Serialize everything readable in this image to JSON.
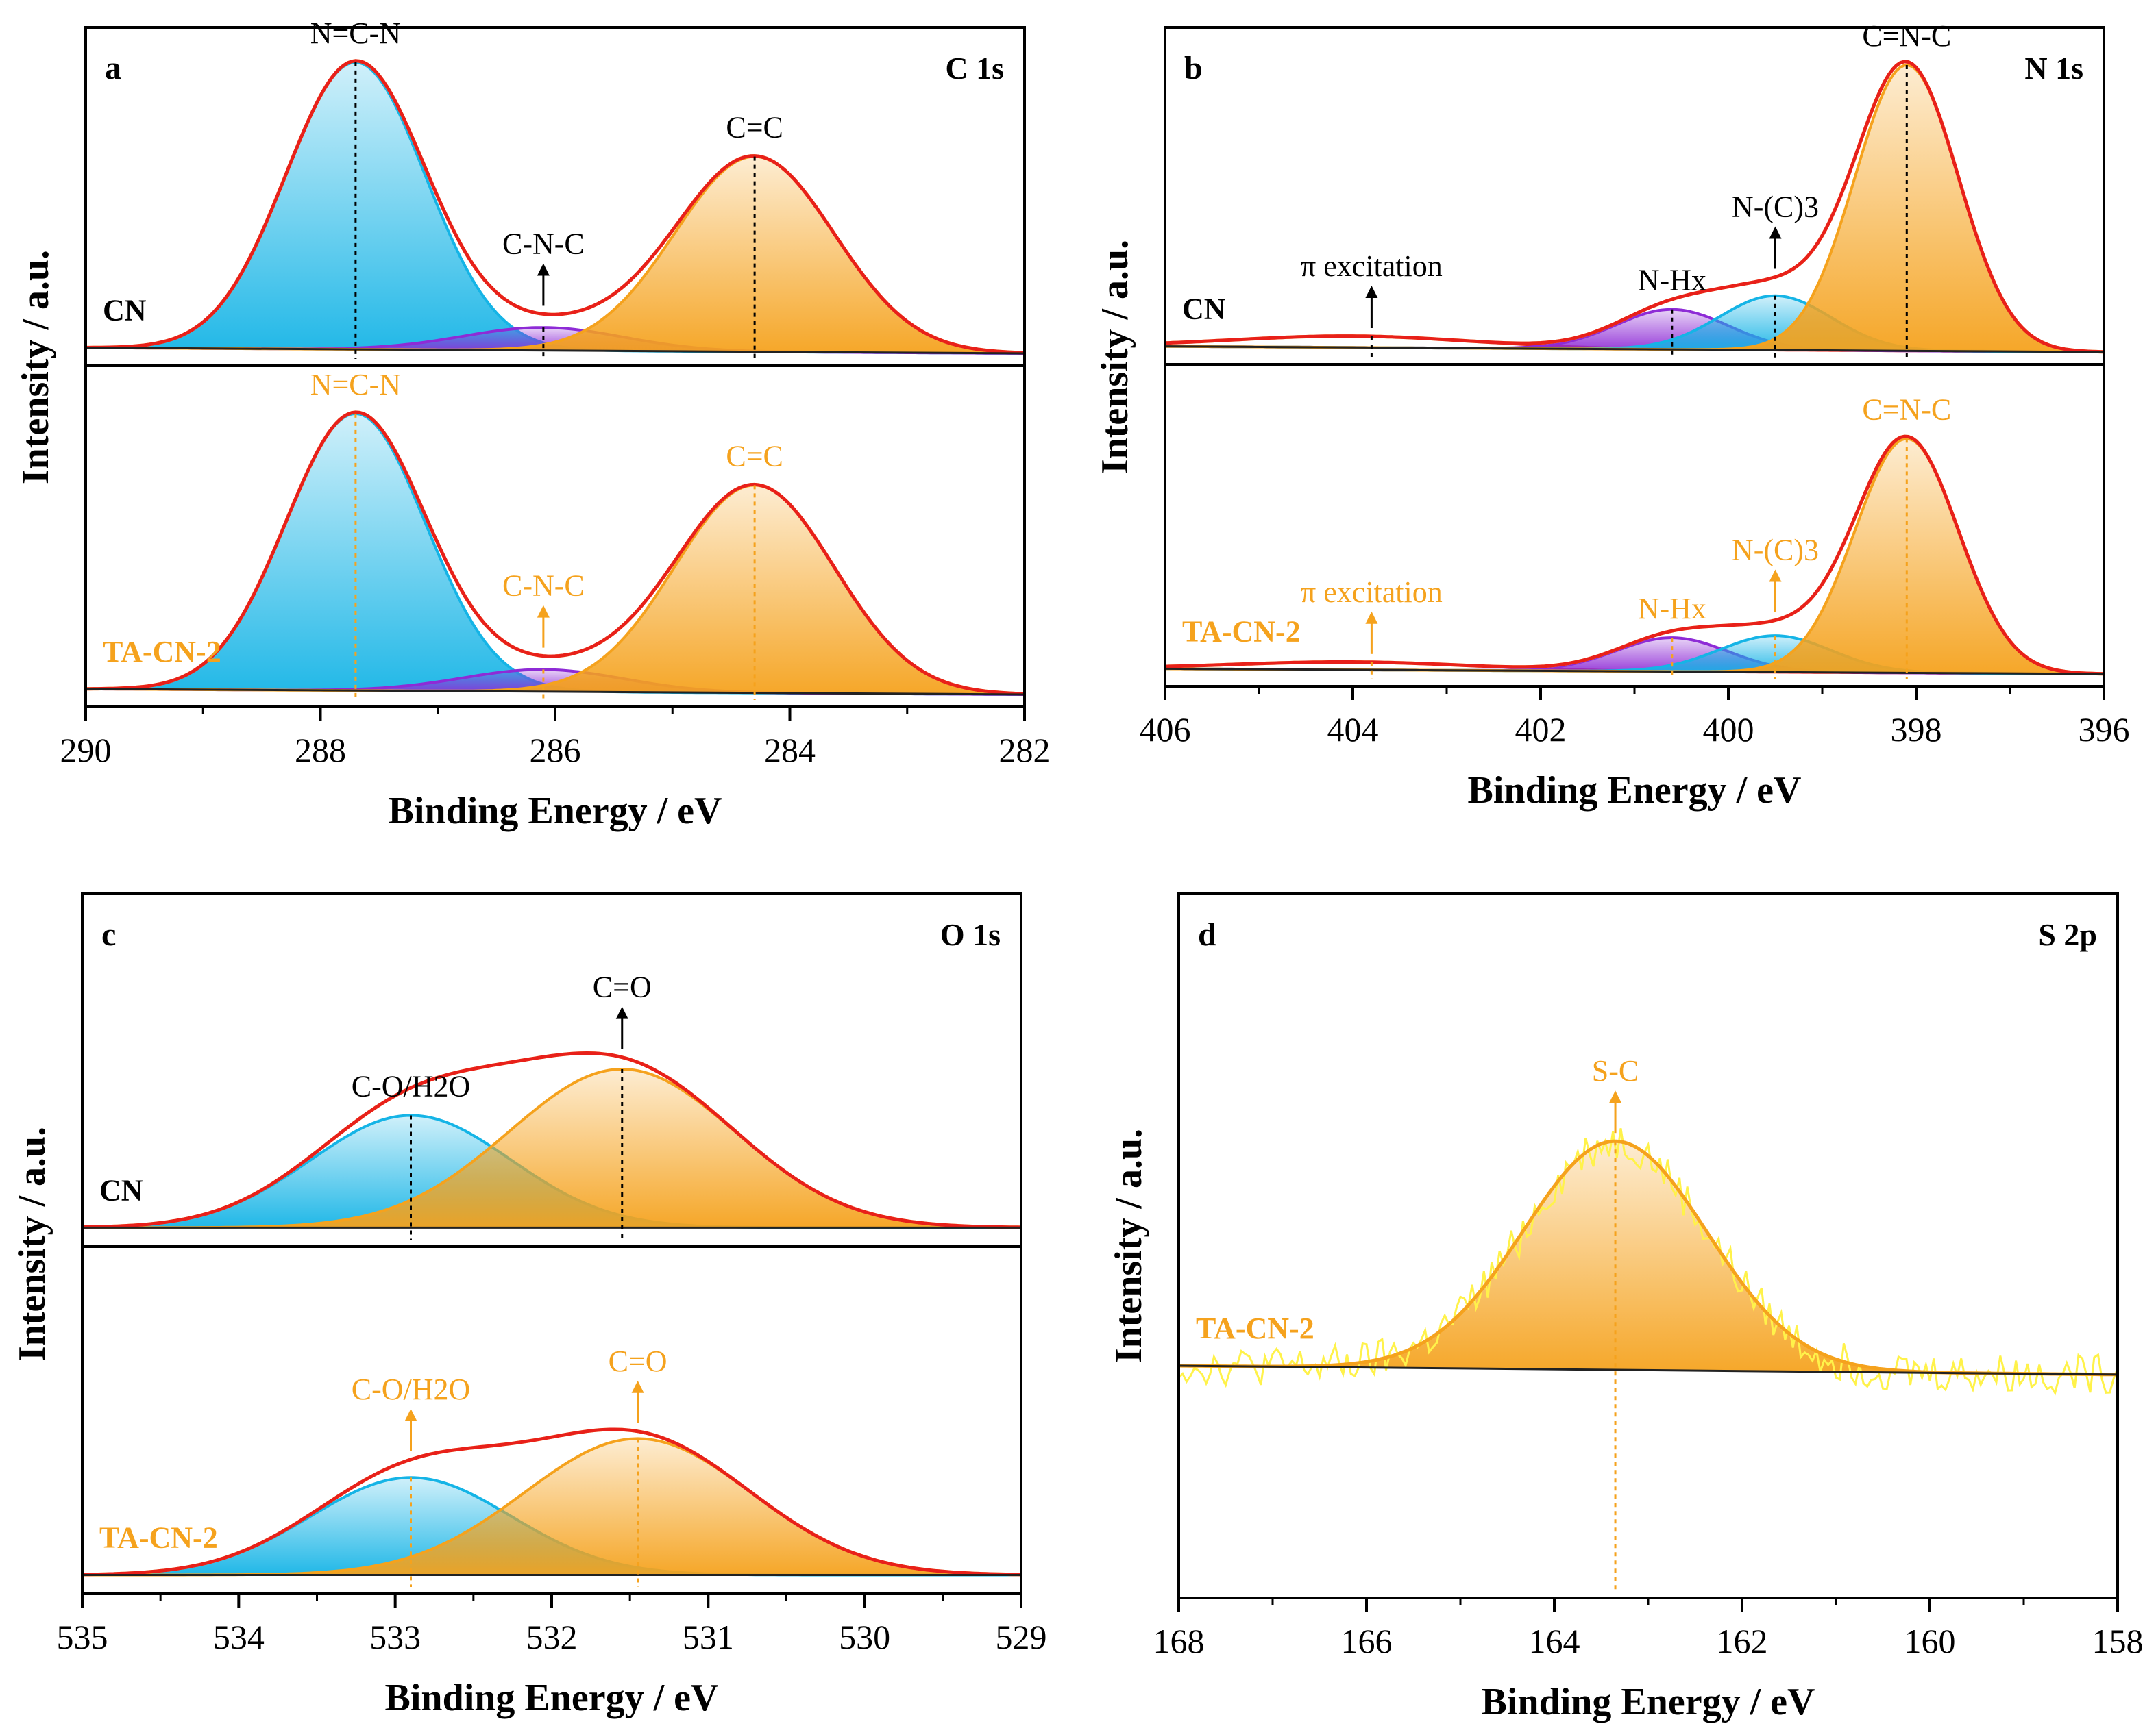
{
  "figure": {
    "colors": {
      "envelope": "#e8201a",
      "blue": "#15b4e6",
      "purple": "#8e2bd6",
      "orange": "#f5a21d",
      "raw": "#fff24a",
      "black": "#000000"
    }
  },
  "chart_data": [
    {
      "type": "line",
      "panel": "a",
      "title": "C 1s",
      "xlabel": "Binding Energy / eV",
      "ylabel": "Intensity / a.u.",
      "xlim": [
        290,
        282
      ],
      "xticks": [
        "290",
        "288",
        "286",
        "284",
        "282"
      ],
      "subpanels": [
        {
          "sample": "CN",
          "sample_color": "#000000",
          "ylim": [
            0,
            1.1
          ],
          "baseline": [
            0.02,
            0.0
          ],
          "components": [
            {
              "name": "N=C-N",
              "center": 287.7,
              "height": 1.0,
              "fwhm": 1.4,
              "color": "blue"
            },
            {
              "name": "C-N-C",
              "center": 286.1,
              "height": 0.08,
              "fwhm": 1.6,
              "color": "purple"
            },
            {
              "name": "C=C",
              "center": 284.3,
              "height": 0.68,
              "fwhm": 1.6,
              "color": "orange"
            }
          ],
          "annotations": [
            {
              "text": "N=C-N",
              "x": 287.7,
              "color": "#000000",
              "dashed": true
            },
            {
              "text": "C-N-C",
              "x": 286.1,
              "color": "#000000",
              "dashed": true,
              "arrow": true
            },
            {
              "text": "C=C",
              "x": 284.3,
              "color": "#000000",
              "dashed": true
            }
          ]
        },
        {
          "sample": "TA-CN-2",
          "sample_color": "#f5a21d",
          "ylim": [
            0,
            1.15
          ],
          "baseline": [
            0.02,
            0.0
          ],
          "components": [
            {
              "name": "N=C-N",
              "center": 287.7,
              "height": 1.0,
              "fwhm": 1.4,
              "color": "blue"
            },
            {
              "name": "C-N-C",
              "center": 286.1,
              "height": 0.08,
              "fwhm": 1.6,
              "color": "purple"
            },
            {
              "name": "C=C",
              "center": 284.3,
              "height": 0.75,
              "fwhm": 1.6,
              "color": "orange"
            }
          ],
          "annotations": [
            {
              "text": "N=C-N",
              "x": 287.7,
              "color": "#f5a21d",
              "dashed": true
            },
            {
              "text": "C-N-C",
              "x": 286.1,
              "color": "#f5a21d",
              "dashed": true,
              "arrow": true
            },
            {
              "text": "C=C",
              "x": 284.3,
              "color": "#f5a21d",
              "dashed": true
            }
          ]
        }
      ]
    },
    {
      "type": "line",
      "panel": "b",
      "title": "N 1s",
      "xlabel": "Binding Energy / eV",
      "ylabel": "Intensity / a.u.",
      "xlim": [
        406,
        396
      ],
      "xticks": [
        "406",
        "404",
        "402",
        "400",
        "398",
        "396"
      ],
      "subpanels": [
        {
          "sample": "CN",
          "sample_color": "#000000",
          "ylim": [
            0,
            1.1
          ],
          "baseline": [
            0.02,
            0.0
          ],
          "components": [
            {
              "name": "π excitation",
              "center": 404.0,
              "height": 0.04,
              "fwhm": 3.0,
              "color": "red"
            },
            {
              "name": "N-Hx",
              "center": 400.6,
              "height": 0.14,
              "fwhm": 1.4,
              "color": "purple"
            },
            {
              "name": "N-(C)3",
              "center": 399.5,
              "height": 0.19,
              "fwhm": 1.4,
              "color": "blue"
            },
            {
              "name": "C=N-C",
              "center": 398.1,
              "height": 1.0,
              "fwhm": 1.3,
              "color": "orange"
            }
          ],
          "annotations": [
            {
              "text": "π excitation",
              "x": 403.8,
              "color": "#000000",
              "dashed": true,
              "arrow": true
            },
            {
              "text": "N-Hx",
              "x": 400.6,
              "color": "#000000",
              "dashed": true
            },
            {
              "text": "N-(C)3",
              "x": 399.5,
              "color": "#000000",
              "dashed": true,
              "arrow": true
            },
            {
              "text": "C=N-C",
              "x": 398.1,
              "color": "#000000",
              "dashed": true
            }
          ]
        },
        {
          "sample": "TA-CN-2",
          "sample_color": "#f5a21d",
          "ylim": [
            0,
            1.15
          ],
          "baseline": [
            0.02,
            0.0
          ],
          "components": [
            {
              "name": "π excitation",
              "center": 404.0,
              "height": 0.03,
              "fwhm": 3.0,
              "color": "red"
            },
            {
              "name": "N-Hx",
              "center": 400.6,
              "height": 0.13,
              "fwhm": 1.4,
              "color": "purple"
            },
            {
              "name": "N-(C)3",
              "center": 399.5,
              "height": 0.14,
              "fwhm": 1.4,
              "color": "blue"
            },
            {
              "name": "C=N-C",
              "center": 398.1,
              "height": 0.9,
              "fwhm": 1.3,
              "color": "orange"
            }
          ],
          "annotations": [
            {
              "text": "π excitation",
              "x": 403.8,
              "color": "#f5a21d",
              "dashed": true,
              "arrow": true
            },
            {
              "text": "N-Hx",
              "x": 400.6,
              "color": "#f5a21d",
              "dashed": true
            },
            {
              "text": "N-(C)3",
              "x": 399.5,
              "color": "#f5a21d",
              "dashed": true,
              "arrow": true
            },
            {
              "text": "C=N-C",
              "x": 398.1,
              "color": "#f5a21d",
              "dashed": true
            }
          ]
        }
      ]
    },
    {
      "type": "line",
      "panel": "c",
      "title": "O 1s",
      "xlabel": "Binding Energy / eV",
      "ylabel": "Intensity / a.u.",
      "xlim": [
        535,
        529
      ],
      "xticks": [
        "535",
        "534",
        "533",
        "532",
        "531",
        "530",
        "529"
      ],
      "subpanels": [
        {
          "sample": "CN",
          "sample_color": "#000000",
          "ylim": [
            0,
            1.0
          ],
          "baseline": [
            0.02,
            0.02
          ],
          "components": [
            {
              "name": "C-O/H2O",
              "center": 532.9,
              "height": 0.34,
              "fwhm": 1.5,
              "color": "blue"
            },
            {
              "name": "C=O",
              "center": 531.55,
              "height": 0.48,
              "fwhm": 1.7,
              "color": "orange"
            }
          ],
          "annotations": [
            {
              "text": "C-O/H2O",
              "x": 532.9,
              "color": "#000000",
              "dashed": true
            },
            {
              "text": "C=O",
              "x": 531.55,
              "color": "#000000",
              "dashed": true,
              "arrow": true
            }
          ]
        },
        {
          "sample": "TA-CN-2",
          "sample_color": "#f5a21d",
          "ylim": [
            0,
            1.0
          ],
          "baseline": [
            0.02,
            0.02
          ],
          "components": [
            {
              "name": "C-O/H2O",
              "center": 532.9,
              "height": 0.3,
              "fwhm": 1.5,
              "color": "blue"
            },
            {
              "name": "C=O",
              "center": 531.45,
              "height": 0.42,
              "fwhm": 1.7,
              "color": "orange"
            }
          ],
          "annotations": [
            {
              "text": "C-O/H2O",
              "x": 532.9,
              "color": "#f5a21d",
              "dashed": true,
              "arrow": true
            },
            {
              "text": "C=O",
              "x": 531.45,
              "color": "#f5a21d",
              "dashed": true,
              "arrow": true
            }
          ]
        }
      ]
    },
    {
      "type": "line",
      "panel": "d",
      "title": "S 2p",
      "xlabel": "Binding Energy / eV",
      "ylabel": "Intensity / a.u.",
      "xlim": [
        168,
        158
      ],
      "xticks": [
        "168",
        "166",
        "164",
        "162",
        "160",
        "158"
      ],
      "subpanels": [
        {
          "sample": "TA-CN-2",
          "sample_color": "#f5a21d",
          "ylim": [
            -0.5,
            1.05
          ],
          "baseline": [
            0.0,
            -0.02
          ],
          "noise": 0.045,
          "components": [
            {
              "name": "S-C",
              "center": 163.35,
              "height": 0.52,
              "fwhm": 2.3,
              "color": "orange"
            }
          ],
          "annotations": [
            {
              "text": "S-C",
              "x": 163.35,
              "color": "#f5a21d",
              "dashed": true,
              "arrow": true
            }
          ]
        }
      ]
    }
  ]
}
